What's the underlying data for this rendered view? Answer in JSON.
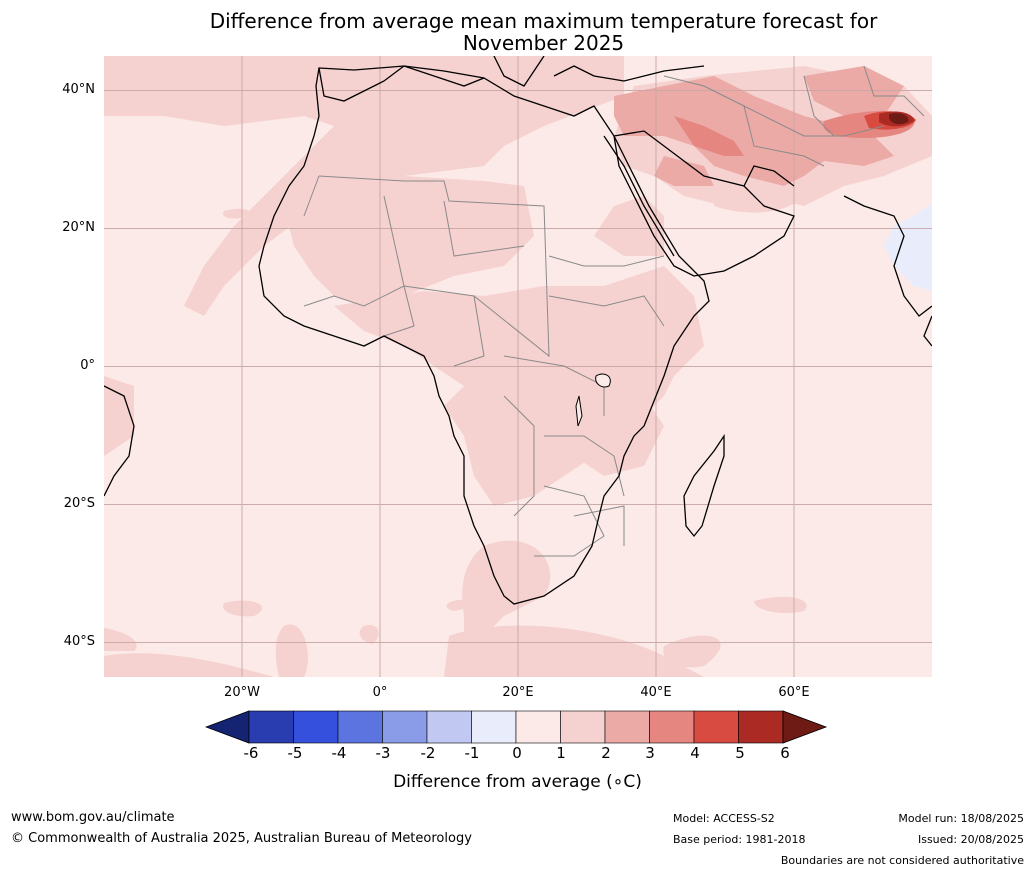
{
  "title": {
    "line1": "Difference from average mean maximum temperature forecast for",
    "line2": "November 2025"
  },
  "map": {
    "region": "Africa",
    "projection": "equirectangular",
    "lon_range": [
      -40,
      80
    ],
    "lat_range": [
      -45,
      45
    ],
    "background_anomaly_class": "0 to 1",
    "lat_ticks": [
      {
        "value": 40,
        "label": "40°N"
      },
      {
        "value": 20,
        "label": "20°N"
      },
      {
        "value": 0,
        "label": "0°"
      },
      {
        "value": -20,
        "label": "20°S"
      },
      {
        "value": -40,
        "label": "40°S"
      }
    ],
    "lon_ticks": [
      {
        "value": -20,
        "label": "20°W"
      },
      {
        "value": 0,
        "label": "0°"
      },
      {
        "value": 20,
        "label": "20°E"
      },
      {
        "value": 40,
        "label": "40°E"
      },
      {
        "value": 60,
        "label": "60°E"
      }
    ],
    "gridlines": true
  },
  "colorbar": {
    "label": "Difference from average (∘C)",
    "tick_labels": [
      "-6",
      "-5",
      "-4",
      "-3",
      "-2",
      "-1",
      "0",
      "1",
      "2",
      "3",
      "4",
      "5",
      "6"
    ],
    "colors": [
      "#142472",
      "#2a3db0",
      "#3450dc",
      "#5c74e0",
      "#8a9be8",
      "#c1c9f2",
      "#e9ecfa",
      "#fbeae8",
      "#f5d2d0",
      "#ebaaa6",
      "#e58680",
      "#d84b41",
      "#ab2a24",
      "#6e1a15"
    ]
  },
  "footer": {
    "website": "www.bom.gov.au/climate",
    "copyright": "© Commonwealth of Australia 2025, Australian Bureau of Meteorology",
    "model": "Model: ACCESS-S2",
    "base_period": "Base period: 1981-2018",
    "model_run": "Model run: 18/08/2025",
    "issued": "Issued: 20/08/2025",
    "disclaimer": "Boundaries are not considered authoritative"
  }
}
